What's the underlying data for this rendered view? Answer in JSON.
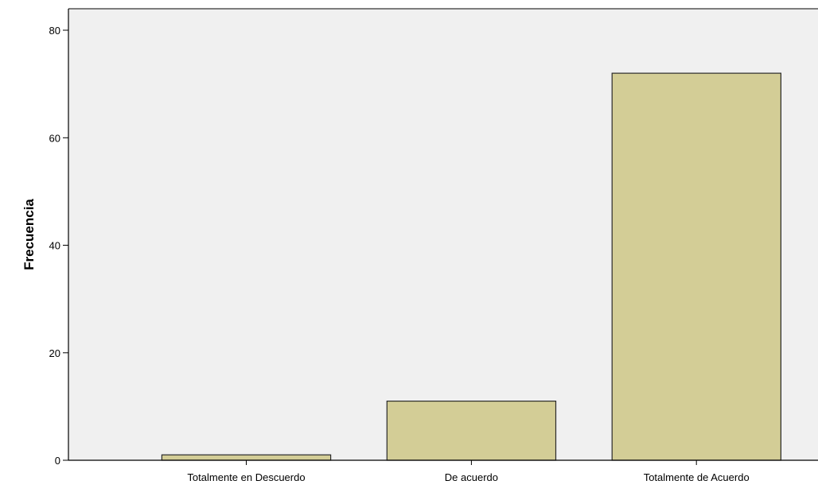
{
  "chart_data": {
    "type": "bar",
    "title": "",
    "xlabel": "",
    "ylabel": "Frecuencia",
    "categories": [
      "Totalmente en Descuerdo",
      "De acuerdo",
      "Totalmente de Acuerdo"
    ],
    "values": [
      1,
      11,
      72
    ],
    "ylim": [
      0,
      84
    ],
    "yticks": [
      0,
      20,
      40,
      60,
      80
    ],
    "grid": false,
    "legend": "none",
    "colors": {
      "bar_fill": "#d3cd96",
      "bar_stroke": "#2a2a2a",
      "plot_background": "#f0f0f0",
      "axis": "#000000"
    }
  }
}
